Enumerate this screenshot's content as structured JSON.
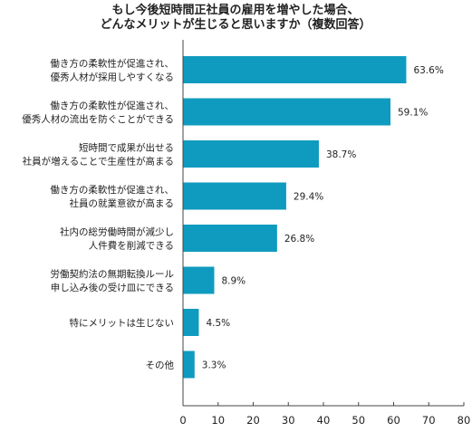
{
  "chart_data": {
    "type": "bar",
    "orientation": "horizontal",
    "title": [
      "もし今後短時間正社員の雇用を増やした場合、",
      "どんなメリットが生じると思いますか（複数回答）"
    ],
    "categories": [
      [
        "働き方の柔軟性が促進され、",
        "優秀人材が採用しやすくなる"
      ],
      [
        "働き方の柔軟性が促進され、",
        "優秀人材の流出を防ぐことができる"
      ],
      [
        "短時間で成果が出せる",
        "社員が増えることで生産性が高まる"
      ],
      [
        "働き方の柔軟性が促進され、",
        "社員の就業意欲が高まる"
      ],
      [
        "社内の総労働時間が減少し",
        "人件費を削減できる"
      ],
      [
        "労働契約法の無期転換ルール",
        "申し込み後の受け皿にできる"
      ],
      [
        "特にメリットは生じない"
      ],
      [
        "その他"
      ]
    ],
    "values": [
      63.6,
      59.1,
      38.7,
      29.4,
      26.8,
      8.9,
      4.5,
      3.3
    ],
    "value_labels": [
      "63.6%",
      "59.1%",
      "38.7%",
      "29.4%",
      "26.8%",
      "8.9%",
      "4.5%",
      "3.3%"
    ],
    "xlim": [
      0,
      80
    ],
    "xticks": [
      0,
      10,
      20,
      30,
      40,
      50,
      60,
      70,
      80
    ],
    "xlabel": "",
    "ylabel": "",
    "grid": false,
    "legend": "none",
    "bar_color": "#0f9bbf",
    "axis_color": "#444444"
  }
}
